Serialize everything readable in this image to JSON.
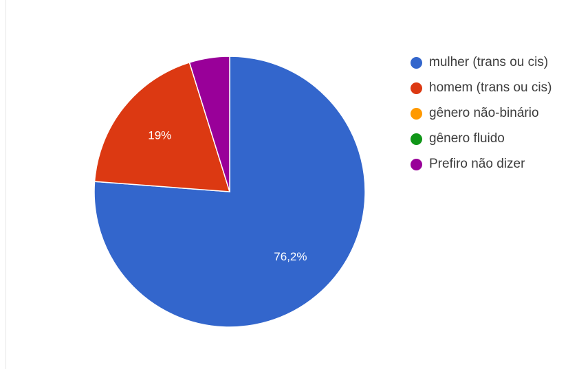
{
  "chart_data": {
    "type": "pie",
    "title": "",
    "start_angle_deg": 90,
    "legend_position": "right",
    "slices": [
      {
        "name": "mulher (trans ou cis)",
        "value": 76.2,
        "label": "76,2%",
        "color": "#3366cc"
      },
      {
        "name": "homem (trans ou cis)",
        "value": 19.0,
        "label": "19%",
        "color": "#dc3912"
      },
      {
        "name": "gênero não-binário",
        "value": 0,
        "label": "",
        "color": "#ff9900"
      },
      {
        "name": "gênero fluido",
        "value": 0,
        "label": "",
        "color": "#109618"
      },
      {
        "name": "Prefiro não dizer",
        "value": 4.8,
        "label": "",
        "color": "#990099"
      }
    ]
  }
}
